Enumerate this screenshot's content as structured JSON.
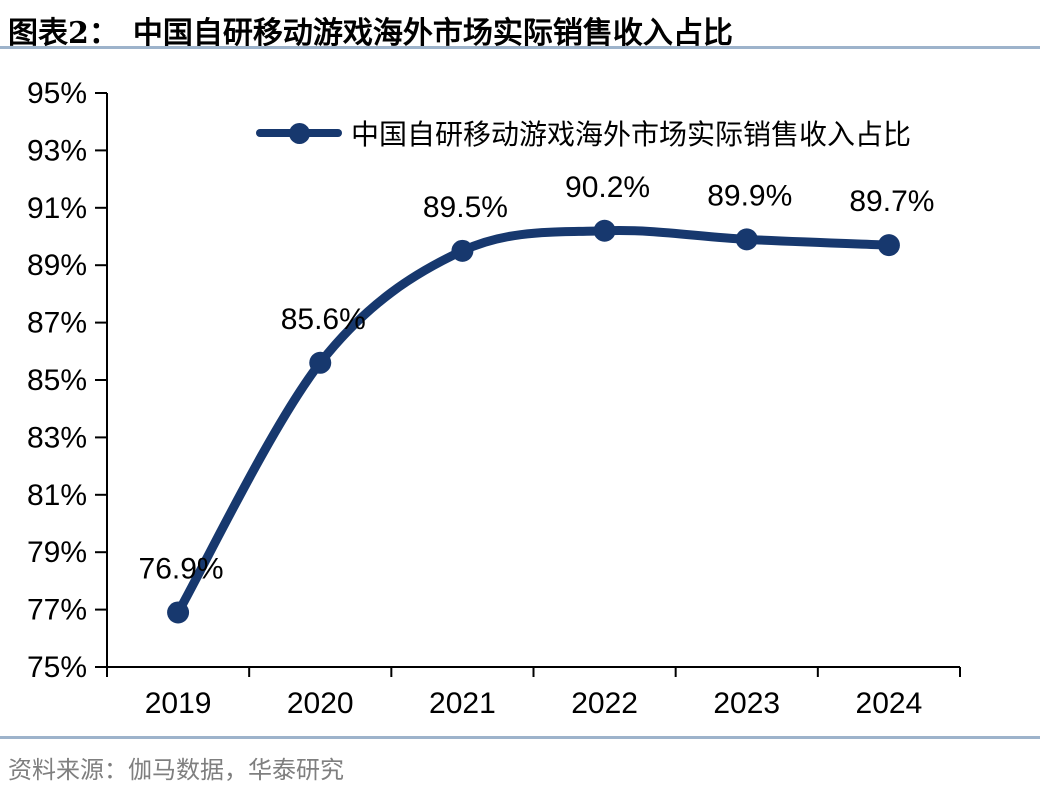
{
  "header": {
    "title_prefix": "图表2：",
    "title": "中国自研移动游戏海外市场实际销售收入占比"
  },
  "legend": {
    "label": "中国自研移动游戏海外市场实际销售收入占比"
  },
  "footer": {
    "source": "资料来源：伽马数据，华泰研究"
  },
  "colors": {
    "series_line": "#17386E",
    "divider": "#9DB3CB",
    "axis": "#000000",
    "data_label_text": "#000000",
    "source_text": "#7F7F7F"
  },
  "chart_data": {
    "type": "line",
    "title": "中国自研移动游戏海外市场实际销售收入占比",
    "categories": [
      "2019",
      "2020",
      "2021",
      "2022",
      "2023",
      "2024"
    ],
    "series": [
      {
        "name": "中国自研移动游戏海外市场实际销售收入占比",
        "values": [
          76.9,
          85.6,
          89.5,
          90.2,
          89.9,
          89.7
        ]
      }
    ],
    "data_labels": [
      "76.9%",
      "85.6%",
      "89.5%",
      "90.2%",
      "89.9%",
      "89.7%"
    ],
    "xlabel": "",
    "ylabel": "",
    "ylim": [
      75,
      95
    ],
    "ytick_step": 2,
    "ytick_labels": [
      "75%",
      "77%",
      "79%",
      "81%",
      "83%",
      "85%",
      "87%",
      "89%",
      "91%",
      "93%",
      "95%"
    ],
    "legend_position": "top-center",
    "grid": false,
    "smooth": true,
    "marker": "circle"
  }
}
